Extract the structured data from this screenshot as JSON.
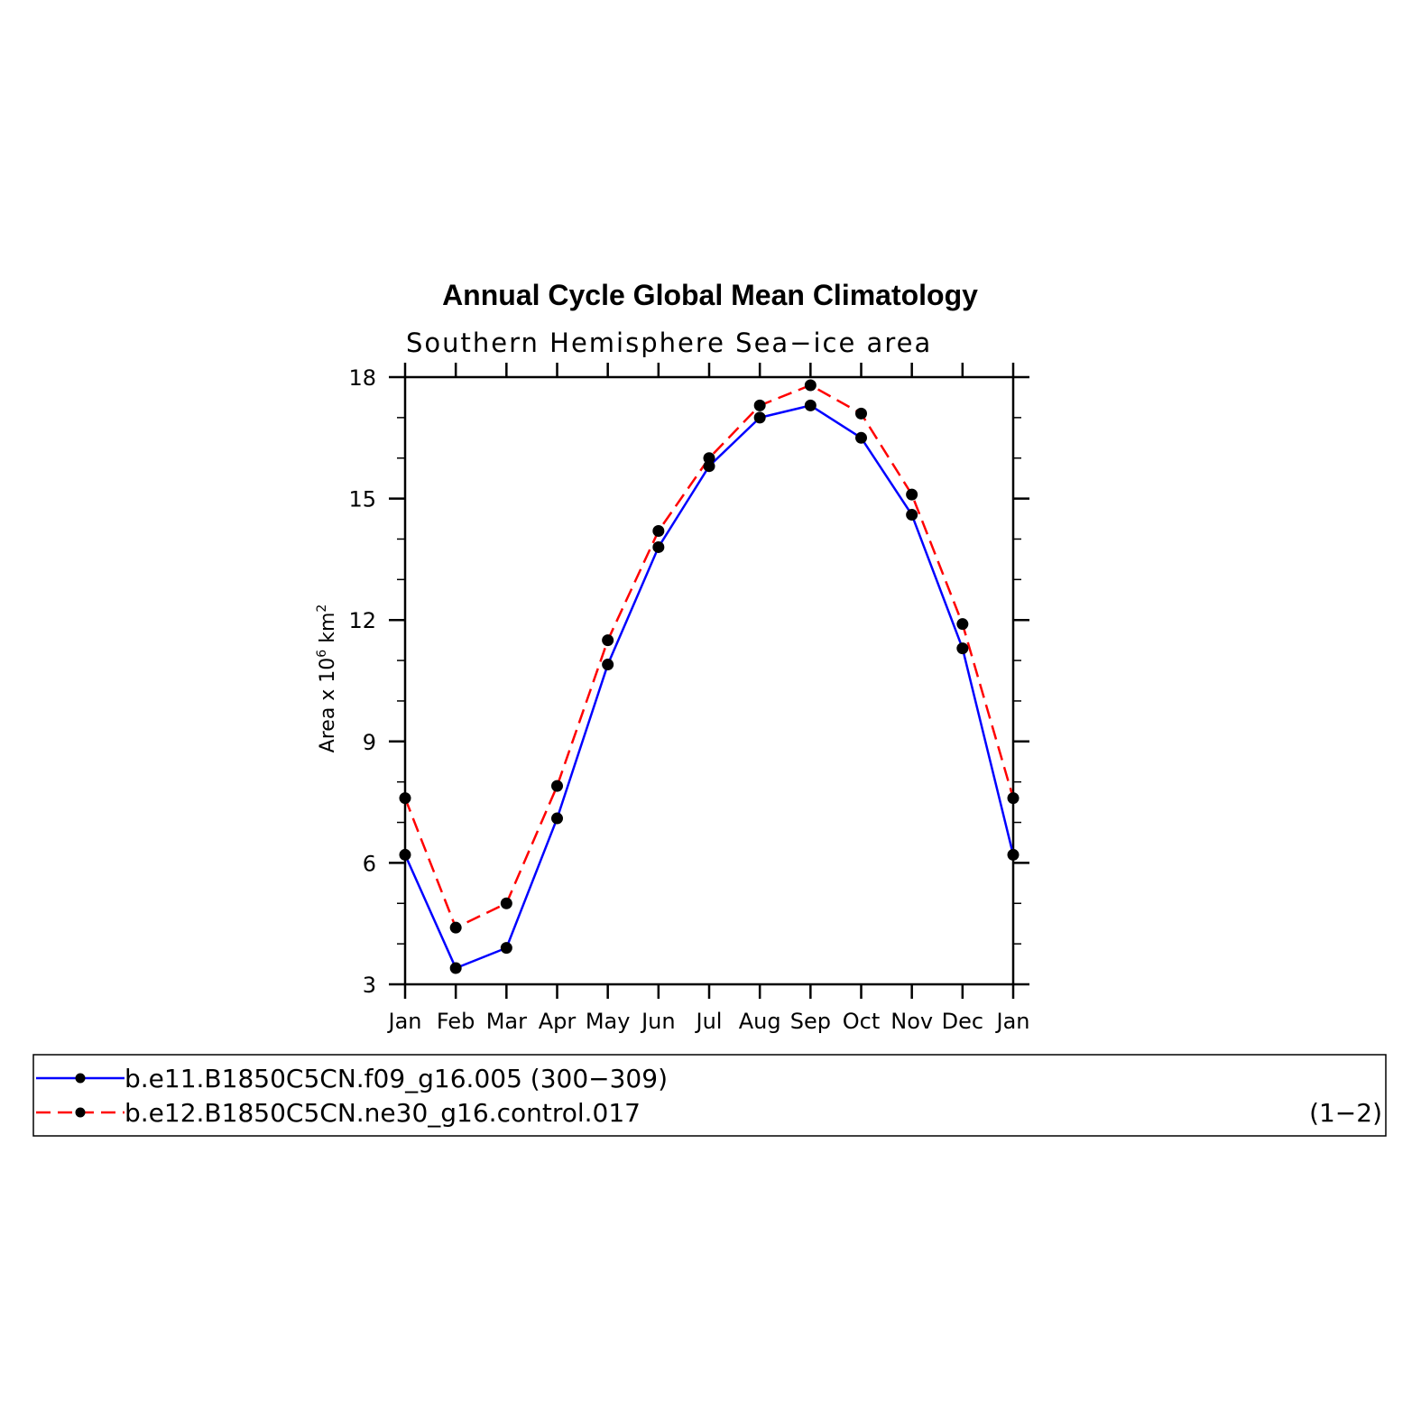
{
  "chart_data": {
    "type": "line",
    "title": "Annual Cycle Global Mean Climatology",
    "subtitle": "Southern Hemisphere Sea−ice area",
    "ylabel": {
      "base": "Area x 10",
      "exp1": "6",
      "mid": " km",
      "exp2": "2"
    },
    "xlabel": "",
    "categories": [
      "Jan",
      "Feb",
      "Mar",
      "Apr",
      "May",
      "Jun",
      "Jul",
      "Aug",
      "Sep",
      "Oct",
      "Nov",
      "Dec",
      "Jan"
    ],
    "ylim": [
      3,
      18
    ],
    "yticks": [
      3,
      6,
      9,
      12,
      15,
      18
    ],
    "yminor_step": 1,
    "grid": false,
    "legend_position": "bottom",
    "series": [
      {
        "name": "b.e11.B1850C5CN.f09_g16.005 (300−309)",
        "color": "#0000ff",
        "dash": "solid",
        "values": [
          6.2,
          3.4,
          3.9,
          7.1,
          10.9,
          13.8,
          15.8,
          17.0,
          17.3,
          16.5,
          14.6,
          11.3,
          6.2
        ]
      },
      {
        "name": "b.e12.B1850C5CN.ne30_g16.control.017",
        "color": "#ff0000",
        "dash": "dashed",
        "values": [
          7.6,
          4.4,
          5.0,
          7.9,
          11.5,
          14.2,
          16.0,
          17.3,
          17.8,
          17.1,
          15.1,
          11.9,
          7.6
        ]
      }
    ],
    "legend_note": "(1−2)"
  }
}
